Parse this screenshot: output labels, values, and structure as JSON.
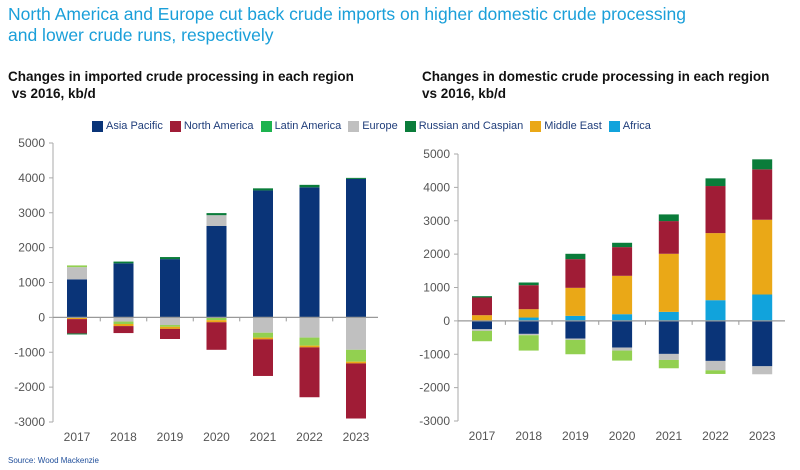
{
  "title_line1": "North America  and Europe cut back crude imports on higher domestic crude processing",
  "title_line2": "and lower crude runs, respectively",
  "source": "Source: Wood Mackenzie",
  "legend": [
    {
      "name": "Asia Pacific",
      "color": "#0a3478"
    },
    {
      "name": "North America",
      "color": "#a01c36"
    },
    {
      "name": "Latin America",
      "color": "#1db34f"
    },
    {
      "name": "Europe",
      "color": "#c0c0c0"
    },
    {
      "name": "Russian and Caspian",
      "color": "#0a7c3a"
    },
    {
      "name": "Middle East",
      "color": "#eaa817"
    },
    {
      "name": "Africa",
      "color": "#11a3dc"
    }
  ],
  "chart_data": [
    {
      "type": "bar",
      "stacked": true,
      "title": "Changes in imported crude processing in each region",
      "title_line2": " vs 2016, kb/d",
      "categories": [
        "2017",
        "2018",
        "2019",
        "2020",
        "2021",
        "2022",
        "2023"
      ],
      "ylim": [
        -3000,
        5000
      ],
      "yticks": [
        "5000",
        "4000",
        "3000",
        "2000",
        "1000",
        "0",
        "-1000",
        "-2000",
        "-3000"
      ],
      "series": [
        {
          "name": "Asia Pacific",
          "color": "#0a3478",
          "values": [
            1090,
            1550,
            1670,
            2620,
            3640,
            3730,
            3970
          ]
        },
        {
          "name": "Europe",
          "color": "#c0c0c0",
          "values": [
            350,
            -120,
            -220,
            310,
            -440,
            -580,
            -930
          ]
        },
        {
          "name": "Latin America",
          "color": "#92d050",
          "values": [
            50,
            -70,
            -50,
            -80,
            -140,
            -230,
            -340
          ]
        },
        {
          "name": "Middle East",
          "color": "#eaa817",
          "values": [
            -50,
            -60,
            -60,
            -60,
            -50,
            -50,
            -50
          ]
        },
        {
          "name": "North America",
          "color": "#a01c36",
          "values": [
            -410,
            -200,
            -290,
            -790,
            -1050,
            -1430,
            -1580
          ]
        },
        {
          "name": "Russian and Caspian",
          "color": "#0a7c3a",
          "values": [
            -30,
            50,
            60,
            60,
            60,
            70,
            30
          ]
        },
        {
          "name": "Africa",
          "color": "#11a3dc",
          "values": [
            0,
            0,
            0,
            0,
            0,
            0,
            0
          ]
        }
      ]
    },
    {
      "type": "bar",
      "stacked": true,
      "title": "Changes in domestic crude processing in each region",
      "title_line2": "vs 2016, kb/d",
      "categories": [
        "2017",
        "2018",
        "2019",
        "2020",
        "2021",
        "2022",
        "2023"
      ],
      "ylim": [
        -3000,
        5000
      ],
      "yticks": [
        "5000",
        "4000",
        "3000",
        "2000",
        "1000",
        "0",
        "-1000",
        "-2000",
        "-3000"
      ],
      "series": [
        {
          "name": "Africa",
          "color": "#11a3dc",
          "values": [
            0,
            100,
            150,
            200,
            270,
            620,
            790
          ]
        },
        {
          "name": "Middle East",
          "color": "#eaa817",
          "values": [
            170,
            250,
            840,
            1150,
            1740,
            2010,
            2240
          ]
        },
        {
          "name": "North America",
          "color": "#a01c36",
          "values": [
            530,
            720,
            860,
            860,
            980,
            1410,
            1510
          ]
        },
        {
          "name": "Russian and Caspian",
          "color": "#0a7c3a",
          "values": [
            40,
            80,
            160,
            130,
            200,
            230,
            300
          ]
        },
        {
          "name": "Asia Pacific",
          "color": "#0a3478",
          "values": [
            -250,
            -390,
            -530,
            -800,
            -990,
            -1200,
            -1360
          ]
        },
        {
          "name": "Europe",
          "color": "#c0c0c0",
          "values": [
            -50,
            -40,
            -40,
            -90,
            -180,
            -280,
            -240
          ]
        },
        {
          "name": "Latin America",
          "color": "#92d050",
          "values": [
            -310,
            -460,
            -430,
            -300,
            -250,
            -110,
            0
          ]
        }
      ]
    }
  ]
}
